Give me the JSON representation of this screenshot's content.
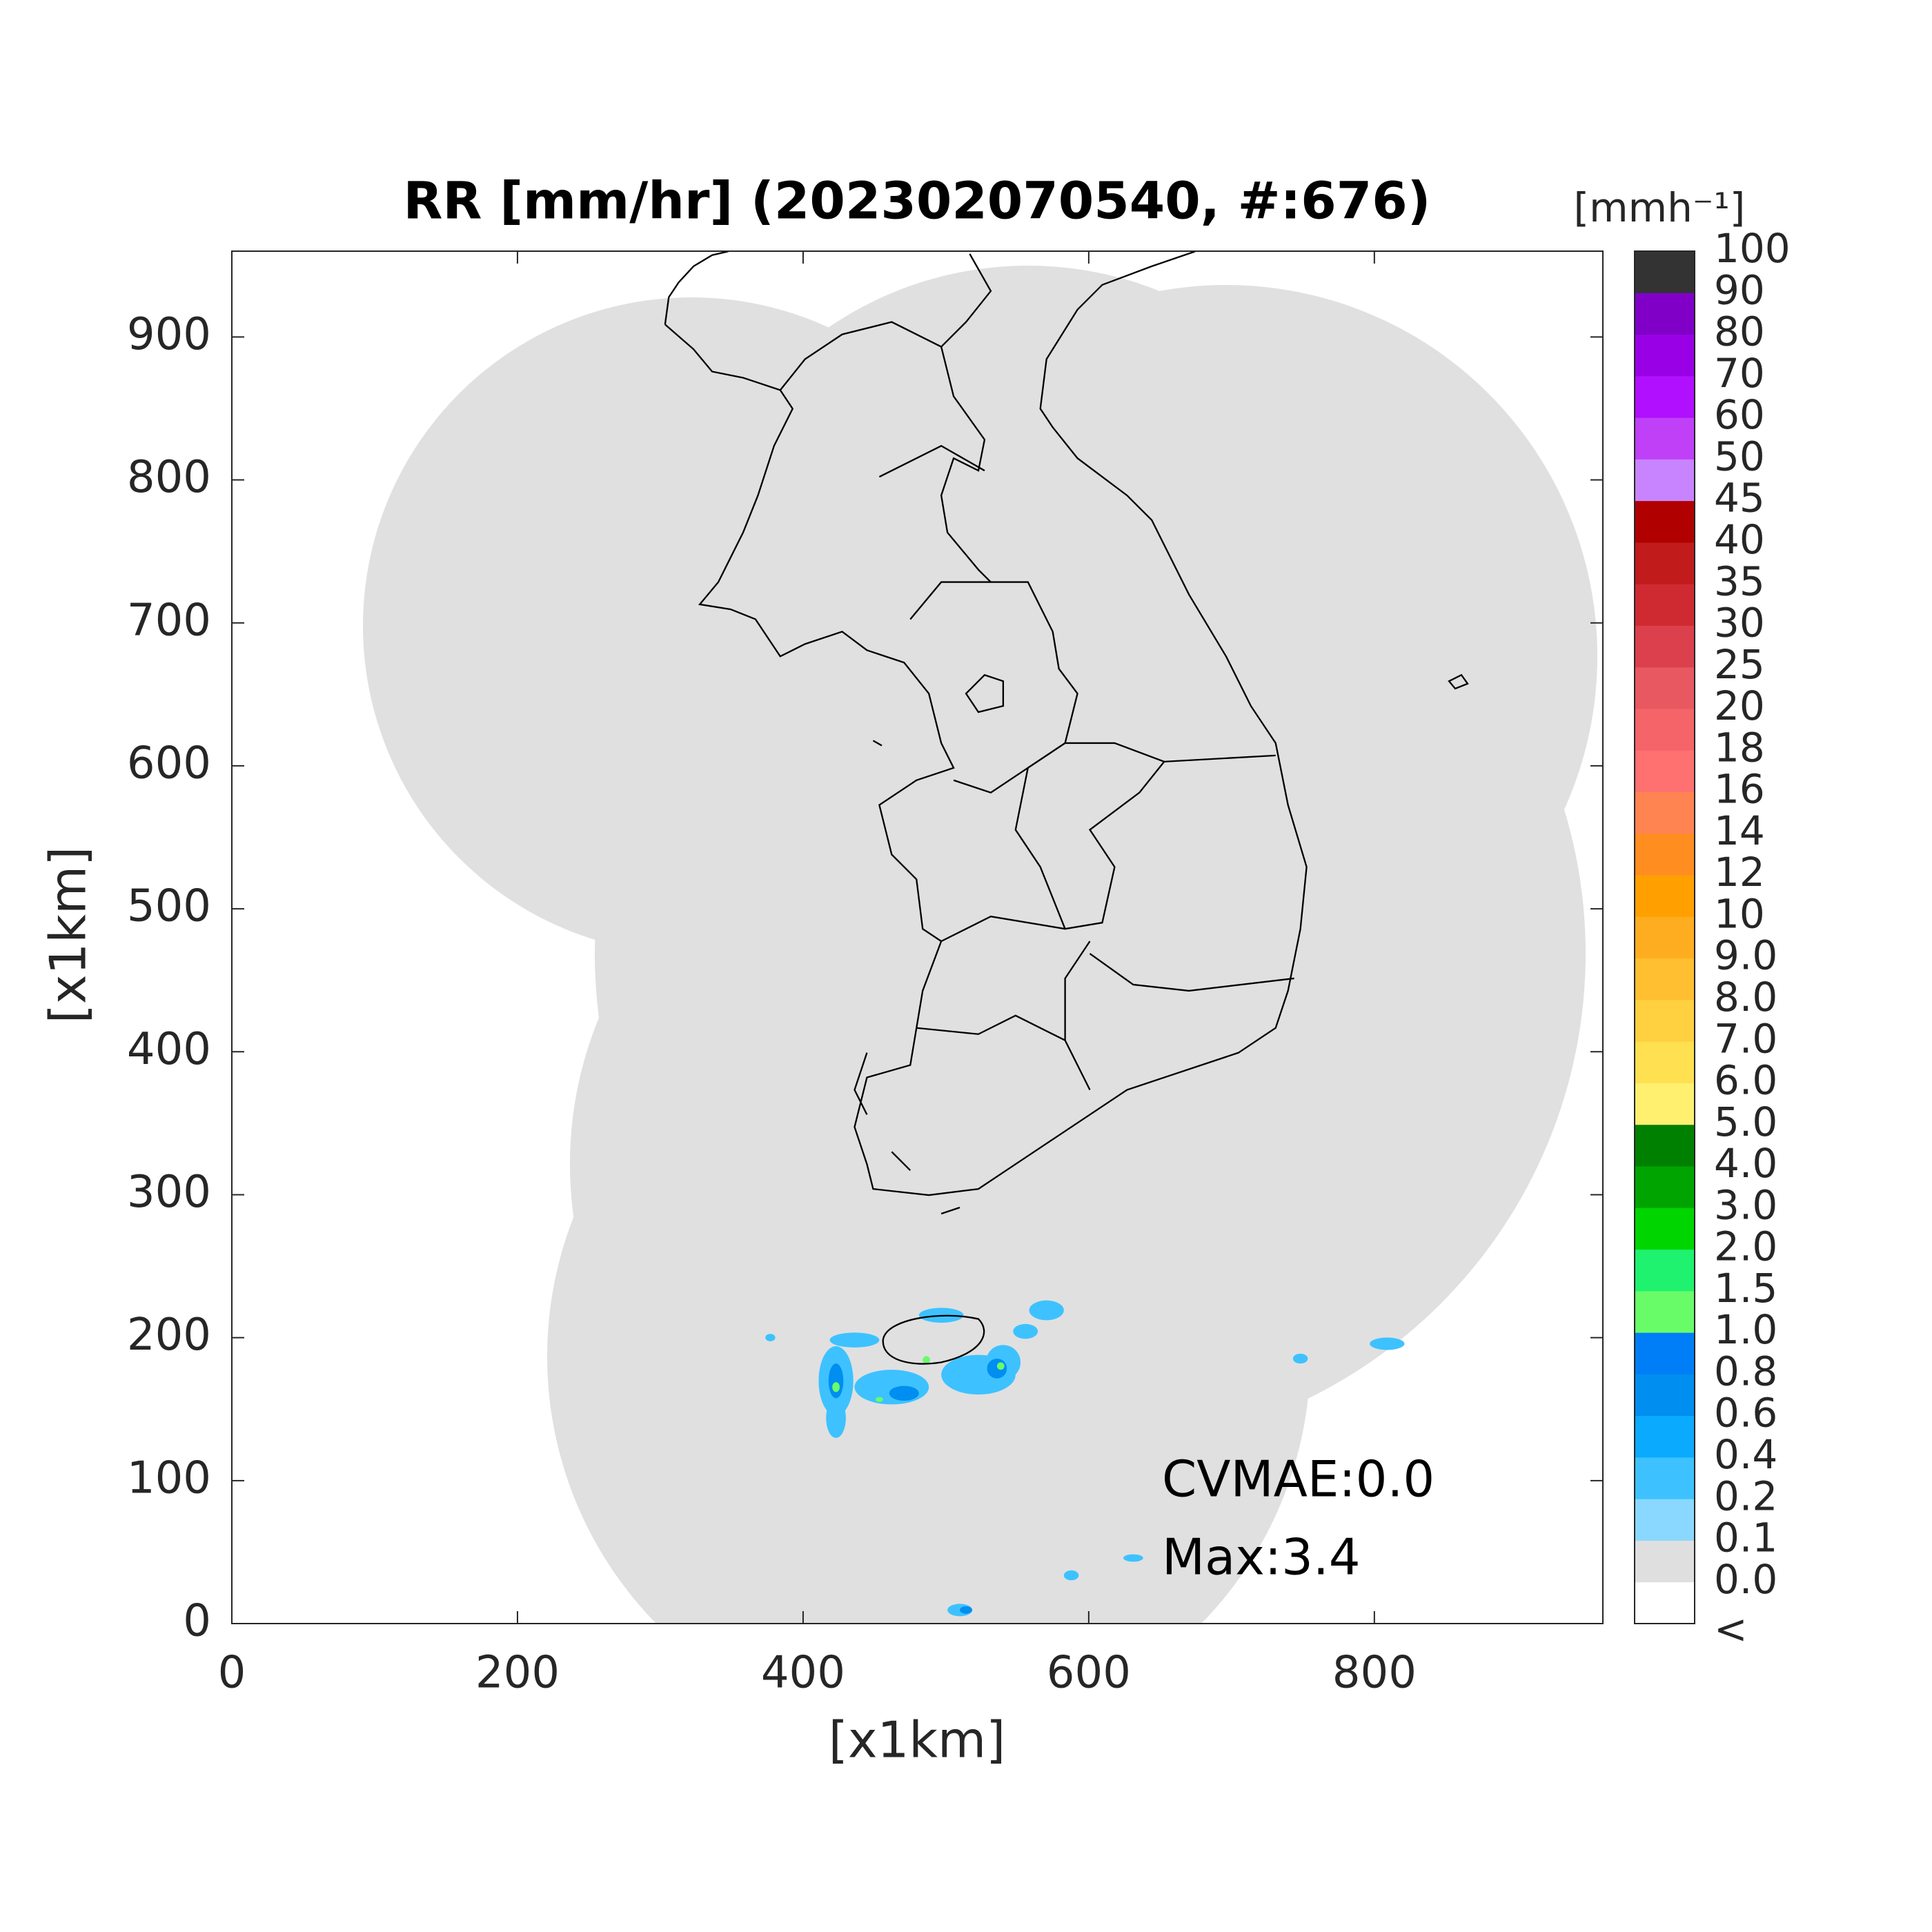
{
  "chart_data": {
    "type": "map",
    "title": "RR [mm/hr] (202302070540, #:676)",
    "xlabel": "[x1km]",
    "ylabel": "[x1km]",
    "xlim": [
      0,
      960
    ],
    "ylim": [
      0,
      960
    ],
    "xticks": [
      0,
      200,
      400,
      600,
      800
    ],
    "yticks": [
      0,
      100,
      200,
      300,
      400,
      500,
      600,
      700,
      800,
      900
    ],
    "grid": false,
    "annotations": [
      "CVMAE:0.0",
      "Max:3.4"
    ],
    "colorbar": {
      "label": "[mmh⁻¹]",
      "ticks": [
        "<",
        {
          "value": 0,
          "label": "0.0"
        },
        0.1,
        0.2,
        0.4,
        0.6,
        0.8,
        {
          "value": 1,
          "label": "1.0"
        },
        1.5,
        {
          "value": 2,
          "label": "2.0"
        },
        {
          "value": 3,
          "label": "3.0"
        },
        {
          "value": 4,
          "label": "4.0"
        },
        {
          "value": 5,
          "label": "5.0"
        },
        {
          "value": 6,
          "label": "6.0"
        },
        {
          "value": 7,
          "label": "7.0"
        },
        {
          "value": 8,
          "label": "8.0"
        },
        {
          "value": 9,
          "label": "9.0"
        },
        10,
        12,
        14,
        16,
        18,
        20,
        25,
        30,
        35,
        40,
        45,
        50,
        60,
        70,
        80,
        90,
        100
      ],
      "colors": [
        "#ffffff",
        "#dfdfdf",
        "#8ad8ff",
        "#3dc2ff",
        "#0aabff",
        "#008ef0",
        "#007ef8",
        "#69fc69",
        "#1ef26f",
        "#00d500",
        "#00a400",
        "#008000",
        "#fff070",
        "#ffe050",
        "#ffd040",
        "#ffbf30",
        "#ffad20",
        "#ffa000",
        "#ff8d20",
        "#ff8452",
        "#ff7070",
        "#f46468",
        "#e85860",
        "#db404c",
        "#cf2a32",
        "#c11b1c",
        "#b00000",
        "#c884ff",
        "#c040f8",
        "#b10fff",
        "#9a00e6",
        "#8000c8",
        "#333333"
      ]
    }
  }
}
